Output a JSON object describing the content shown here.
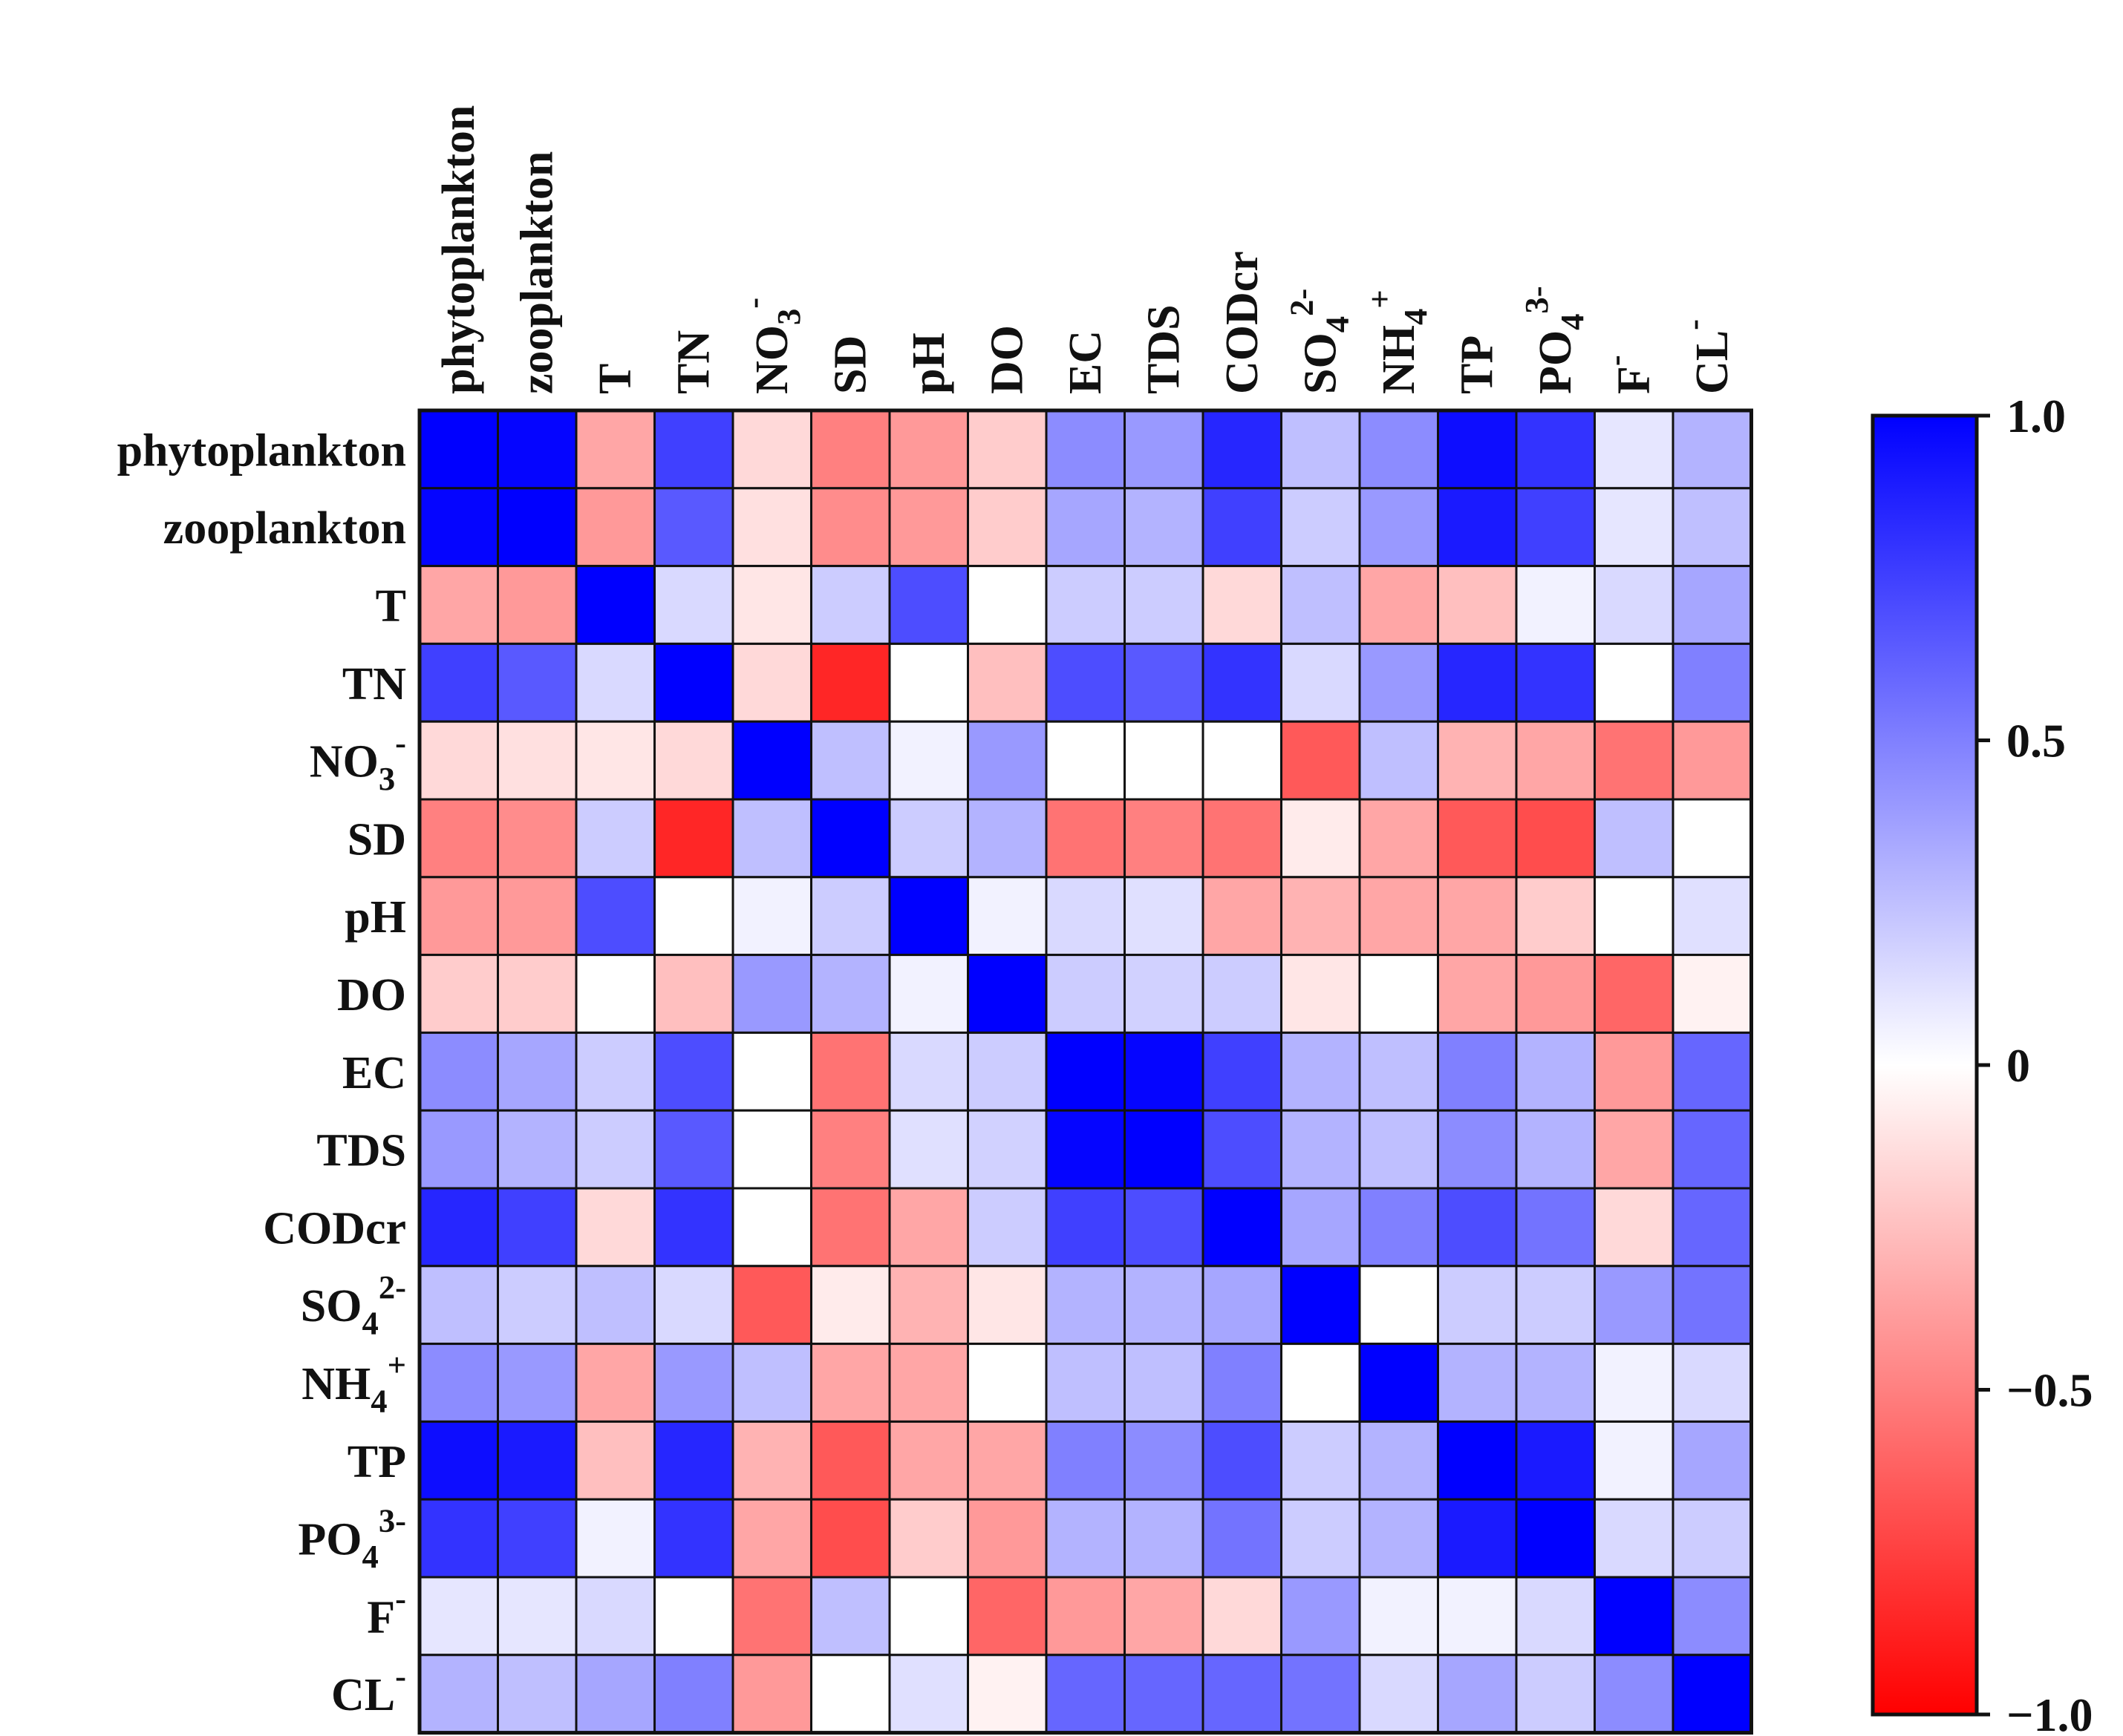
{
  "chart_data": {
    "type": "heatmap",
    "title": "",
    "variables": [
      {
        "base": "phytoplankton",
        "sub": "",
        "sup": ""
      },
      {
        "base": "zooplankton",
        "sub": "",
        "sup": ""
      },
      {
        "base": "T",
        "sub": "",
        "sup": ""
      },
      {
        "base": "TN",
        "sub": "",
        "sup": ""
      },
      {
        "base": "NO",
        "sub": "3",
        "sup": "-"
      },
      {
        "base": "SD",
        "sub": "",
        "sup": ""
      },
      {
        "base": "pH",
        "sub": "",
        "sup": ""
      },
      {
        "base": "DO",
        "sub": "",
        "sup": ""
      },
      {
        "base": "EC",
        "sub": "",
        "sup": ""
      },
      {
        "base": "TDS",
        "sub": "",
        "sup": ""
      },
      {
        "base": "CODcr",
        "sub": "",
        "sup": ""
      },
      {
        "base": "SO",
        "sub": "4",
        "sup": "2-"
      },
      {
        "base": "NH",
        "sub": "4",
        "sup": "+"
      },
      {
        "base": "TP",
        "sub": "",
        "sup": ""
      },
      {
        "base": "PO",
        "sub": "4",
        "sup": "3-"
      },
      {
        "base": "F",
        "sub": "",
        "sup": "-"
      },
      {
        "base": "CL",
        "sub": "",
        "sup": "-"
      }
    ],
    "matrix": [
      [
        1.0,
        0.98,
        -0.35,
        0.75,
        -0.15,
        -0.5,
        -0.4,
        -0.2,
        0.45,
        0.4,
        0.85,
        0.25,
        0.45,
        0.95,
        0.8,
        0.1,
        0.3
      ],
      [
        0.98,
        1.0,
        -0.4,
        0.65,
        -0.12,
        -0.45,
        -0.4,
        -0.2,
        0.35,
        0.3,
        0.75,
        0.2,
        0.4,
        0.9,
        0.75,
        0.1,
        0.25
      ],
      [
        -0.35,
        -0.4,
        1.0,
        0.15,
        -0.1,
        0.2,
        0.7,
        0.0,
        0.2,
        0.2,
        -0.15,
        0.25,
        -0.35,
        -0.25,
        0.05,
        0.15,
        0.35
      ],
      [
        0.75,
        0.65,
        0.15,
        1.0,
        -0.15,
        -0.85,
        0.0,
        -0.25,
        0.7,
        0.65,
        0.8,
        0.15,
        0.4,
        0.85,
        0.8,
        0.0,
        0.5
      ],
      [
        -0.15,
        -0.12,
        -0.1,
        -0.15,
        1.0,
        0.25,
        0.05,
        0.4,
        0.0,
        0.0,
        0.0,
        -0.65,
        0.25,
        -0.3,
        -0.35,
        -0.55,
        -0.4
      ],
      [
        -0.5,
        -0.45,
        0.2,
        -0.85,
        0.25,
        1.0,
        0.2,
        0.3,
        -0.55,
        -0.5,
        -0.55,
        -0.08,
        -0.35,
        -0.65,
        -0.7,
        0.25,
        0.0
      ],
      [
        -0.4,
        -0.4,
        0.7,
        0.0,
        0.05,
        0.2,
        1.0,
        0.05,
        0.15,
        0.12,
        -0.35,
        -0.3,
        -0.35,
        -0.35,
        -0.2,
        0.0,
        0.12
      ],
      [
        -0.2,
        -0.2,
        0.0,
        -0.25,
        0.4,
        0.3,
        0.05,
        1.0,
        0.2,
        0.18,
        0.2,
        -0.1,
        0.0,
        -0.35,
        -0.4,
        -0.6,
        -0.05
      ],
      [
        0.45,
        0.35,
        0.2,
        0.7,
        0.0,
        -0.55,
        0.15,
        0.2,
        1.0,
        0.98,
        0.75,
        0.3,
        0.25,
        0.5,
        0.3,
        -0.4,
        0.6
      ],
      [
        0.4,
        0.3,
        0.2,
        0.65,
        0.0,
        -0.5,
        0.12,
        0.18,
        0.98,
        1.0,
        0.7,
        0.3,
        0.25,
        0.45,
        0.3,
        -0.35,
        0.6
      ],
      [
        0.85,
        0.75,
        -0.15,
        0.8,
        0.0,
        -0.55,
        -0.35,
        0.2,
        0.75,
        0.7,
        1.0,
        0.35,
        0.5,
        0.7,
        0.55,
        -0.15,
        0.6
      ],
      [
        0.25,
        0.2,
        0.25,
        0.15,
        -0.65,
        -0.08,
        -0.3,
        -0.1,
        0.3,
        0.3,
        0.35,
        1.0,
        0.0,
        0.2,
        0.2,
        0.4,
        0.55
      ],
      [
        0.45,
        0.4,
        -0.35,
        0.4,
        0.25,
        -0.35,
        -0.35,
        0.0,
        0.25,
        0.25,
        0.5,
        0.0,
        1.0,
        0.3,
        0.3,
        0.05,
        0.15
      ],
      [
        0.95,
        0.9,
        -0.25,
        0.85,
        -0.3,
        -0.65,
        -0.35,
        -0.35,
        0.5,
        0.45,
        0.7,
        0.2,
        0.3,
        1.0,
        0.9,
        0.05,
        0.35
      ],
      [
        0.8,
        0.75,
        0.05,
        0.8,
        -0.35,
        -0.7,
        -0.2,
        -0.4,
        0.3,
        0.3,
        0.55,
        0.2,
        0.3,
        0.9,
        1.0,
        0.15,
        0.2
      ],
      [
        0.1,
        0.1,
        0.15,
        0.0,
        -0.55,
        0.25,
        0.0,
        -0.6,
        -0.4,
        -0.35,
        -0.15,
        0.4,
        0.05,
        0.05,
        0.15,
        1.0,
        0.45
      ],
      [
        0.3,
        0.25,
        0.35,
        0.5,
        -0.4,
        0.0,
        0.12,
        -0.05,
        0.6,
        0.6,
        0.6,
        0.55,
        0.15,
        0.35,
        0.2,
        0.45,
        1.0
      ]
    ],
    "colorbar": {
      "min": -1.0,
      "max": 1.0,
      "ticks": [
        {
          "value": 1.0,
          "label": "1.0"
        },
        {
          "value": 0.5,
          "label": "0.5"
        },
        {
          "value": 0.0,
          "label": "0"
        },
        {
          "value": -0.5,
          "label": "−0.5"
        },
        {
          "value": -1.0,
          "label": "−1.0"
        }
      ]
    },
    "colors": {
      "positive": "#0000ff",
      "neutral": "#ffffff",
      "negative": "#ff0000",
      "border": "#111111"
    }
  }
}
